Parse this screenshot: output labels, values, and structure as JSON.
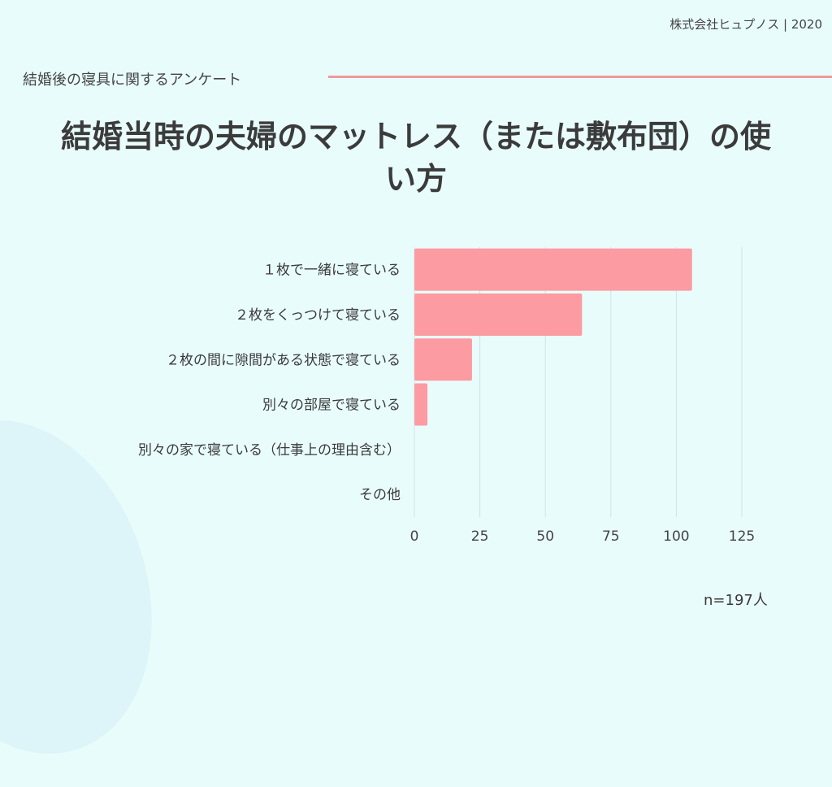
{
  "header": {
    "credit": "株式会社ヒュプノス | 2020",
    "subtitle": "結婚後の寝具に関するアンケート"
  },
  "chart_data": {
    "type": "bar",
    "orientation": "horizontal",
    "title": "結婚当時の夫婦のマットレス（または敷布団）の使い方",
    "categories": [
      "１枚で一緒に寝ている",
      "２枚をくっつけて寝ている",
      "２枚の間に隙間がある状態で寝ている",
      "別々の部屋で寝ている",
      "別々の家で寝ている（仕事上の理由含む）",
      "その他"
    ],
    "values": [
      106,
      64,
      22,
      5,
      0,
      0
    ],
    "xlim": [
      0,
      125
    ],
    "xticks": [
      0,
      25,
      50,
      75,
      100,
      125
    ],
    "xlabel": "",
    "ylabel": "",
    "grid": true,
    "bar_color": "#fc9ba1"
  },
  "footer": {
    "sample_note": "n=197人"
  }
}
